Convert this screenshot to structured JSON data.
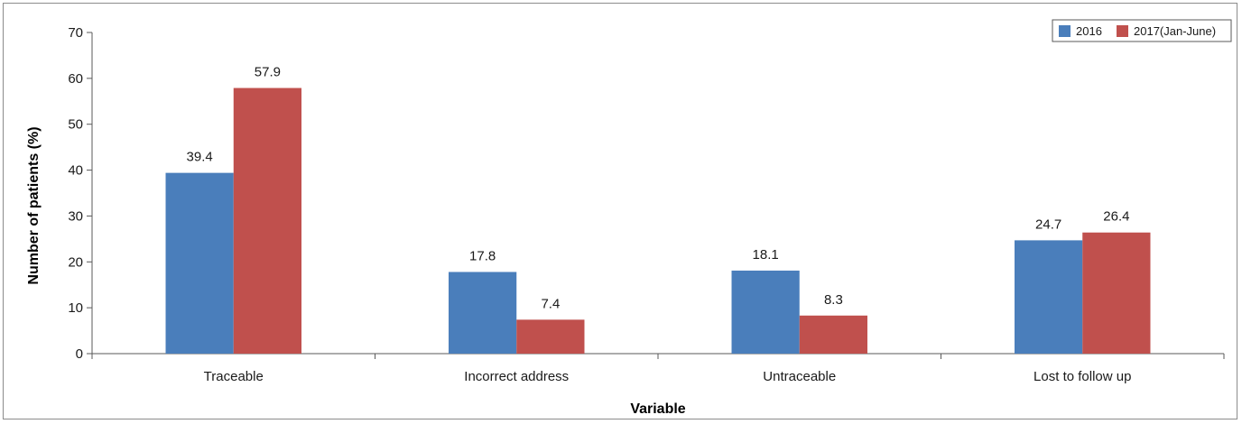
{
  "chart_data": {
    "type": "bar",
    "categories": [
      "Traceable",
      "Incorrect address",
      "Untraceable",
      "Lost to follow up"
    ],
    "series": [
      {
        "name": "2016",
        "values": [
          39.4,
          17.8,
          18.1,
          24.7
        ],
        "color": "#4a7ebb"
      },
      {
        "name": "2017(Jan-June)",
        "values": [
          57.9,
          7.4,
          8.3,
          26.4
        ],
        "color": "#c0504d"
      }
    ],
    "data_labels": [
      [
        "39.4",
        "17.8",
        "18.1",
        "24.7"
      ],
      [
        "57.9",
        "7.4",
        "8.3",
        "26.4"
      ]
    ],
    "xlabel": "Variable",
    "ylabel": "Number of patients (%)",
    "ylim": [
      0,
      70
    ],
    "yticks": [
      "0",
      "10",
      "20",
      "30",
      "40",
      "50",
      "60",
      "70"
    ],
    "grid": false,
    "legend_position": "top-right"
  }
}
